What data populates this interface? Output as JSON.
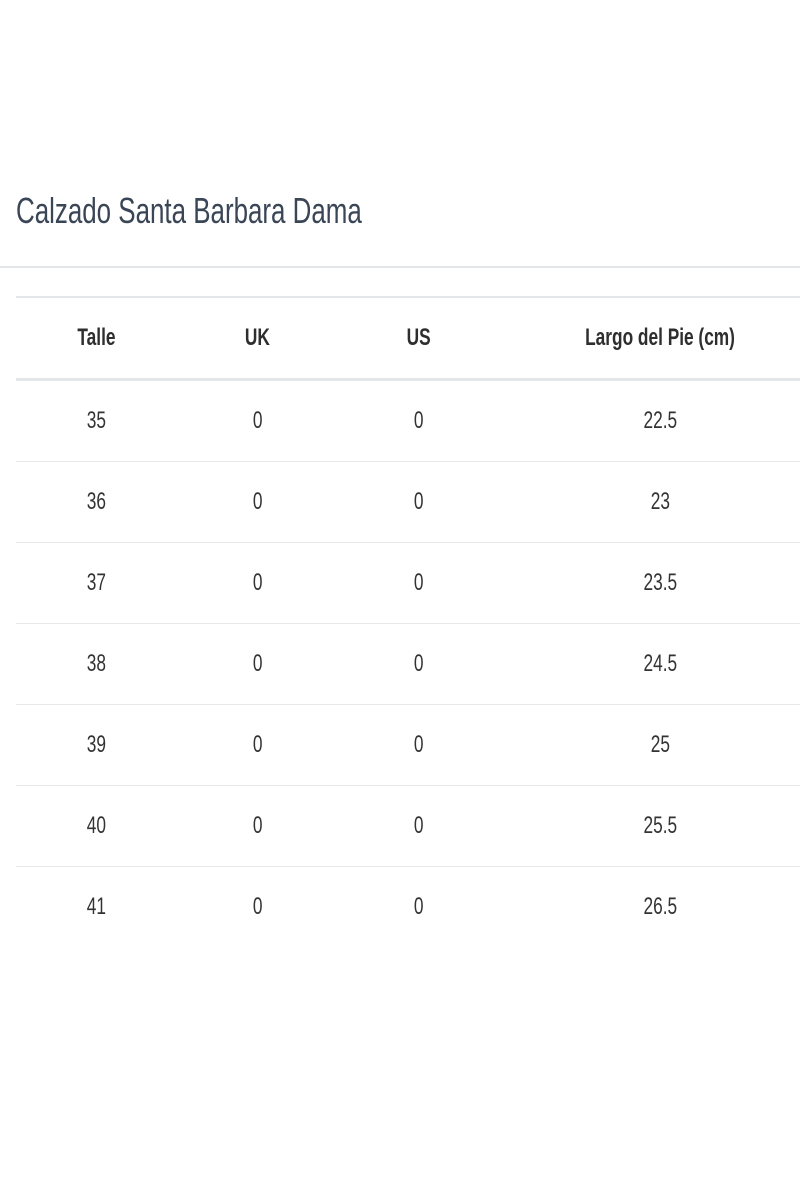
{
  "title": "Calzado Santa Barbara Dama",
  "table": {
    "headers": [
      "Talle",
      "UK",
      "US",
      "Largo del Pie (cm)"
    ],
    "rows": [
      [
        "35",
        "0",
        "0",
        "22.5"
      ],
      [
        "36",
        "0",
        "0",
        "23"
      ],
      [
        "37",
        "0",
        "0",
        "23.5"
      ],
      [
        "38",
        "0",
        "0",
        "24.5"
      ],
      [
        "39",
        "0",
        "0",
        "25"
      ],
      [
        "40",
        "0",
        "0",
        "25.5"
      ],
      [
        "41",
        "0",
        "0",
        "26.5"
      ]
    ]
  }
}
